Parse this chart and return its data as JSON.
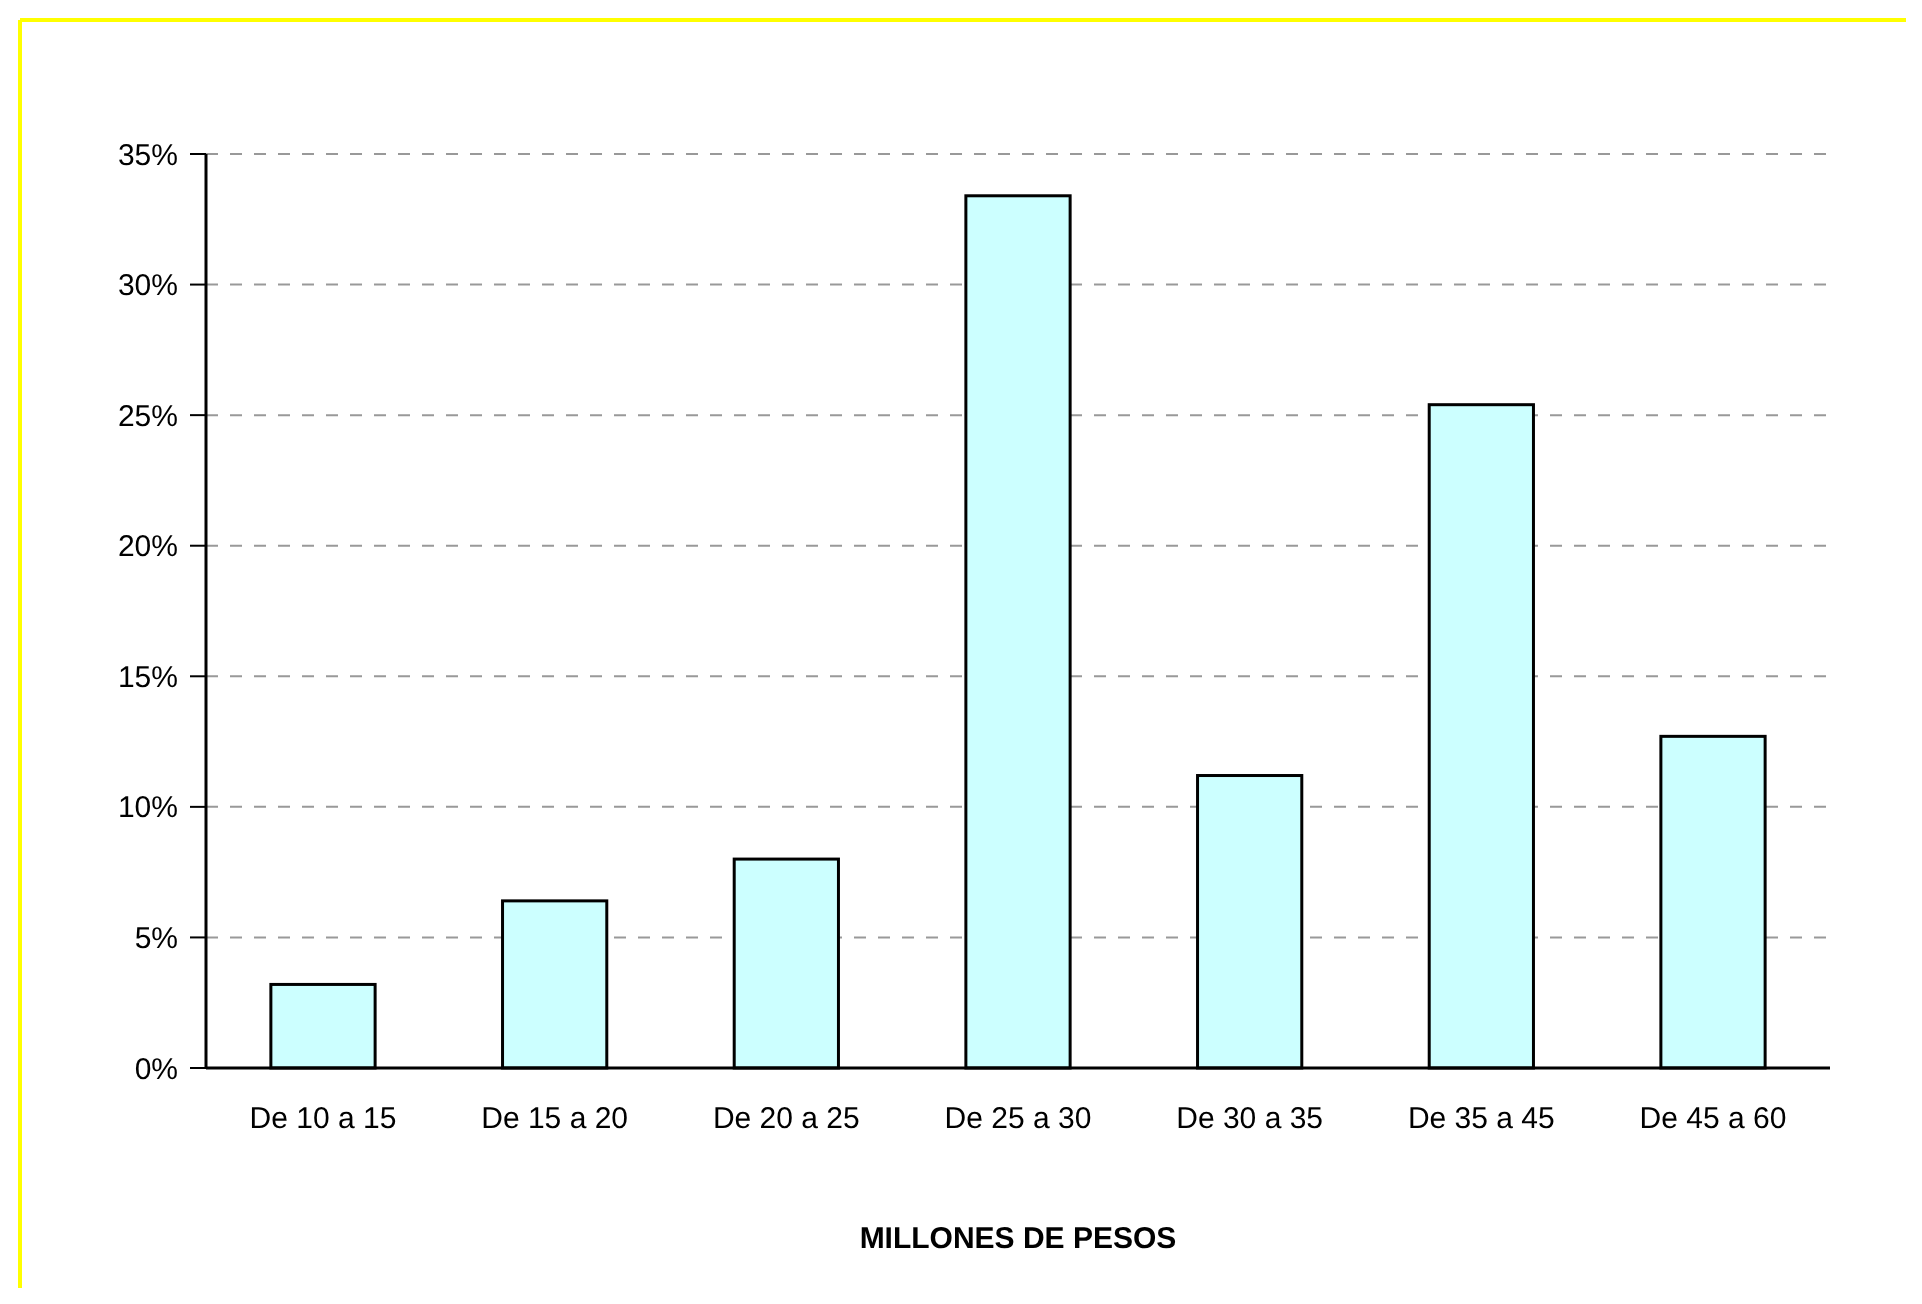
{
  "chart_data": {
    "type": "bar",
    "xlabel": "MILLONES DE PESOS",
    "categories": [
      "De 10 a 15",
      "De 15 a 20",
      "De 20 a 25",
      "De 25 a 30",
      "De 30 a 35",
      "De 35 a 45",
      "De 45 a 60"
    ],
    "values": [
      3.2,
      6.4,
      8.0,
      33.4,
      11.2,
      25.4,
      12.7
    ],
    "color": "#ccffff",
    "ylim": [
      0,
      35
    ],
    "yticks": [
      {
        "value": 0,
        "label": "0%"
      },
      {
        "value": 5,
        "label": "5%"
      },
      {
        "value": 10,
        "label": "10%"
      },
      {
        "value": 15,
        "label": "15%"
      },
      {
        "value": 20,
        "label": "20%"
      },
      {
        "value": 25,
        "label": "25%"
      },
      {
        "value": 30,
        "label": "30%"
      },
      {
        "value": 35,
        "label": "35%"
      }
    ],
    "grid": "y"
  }
}
